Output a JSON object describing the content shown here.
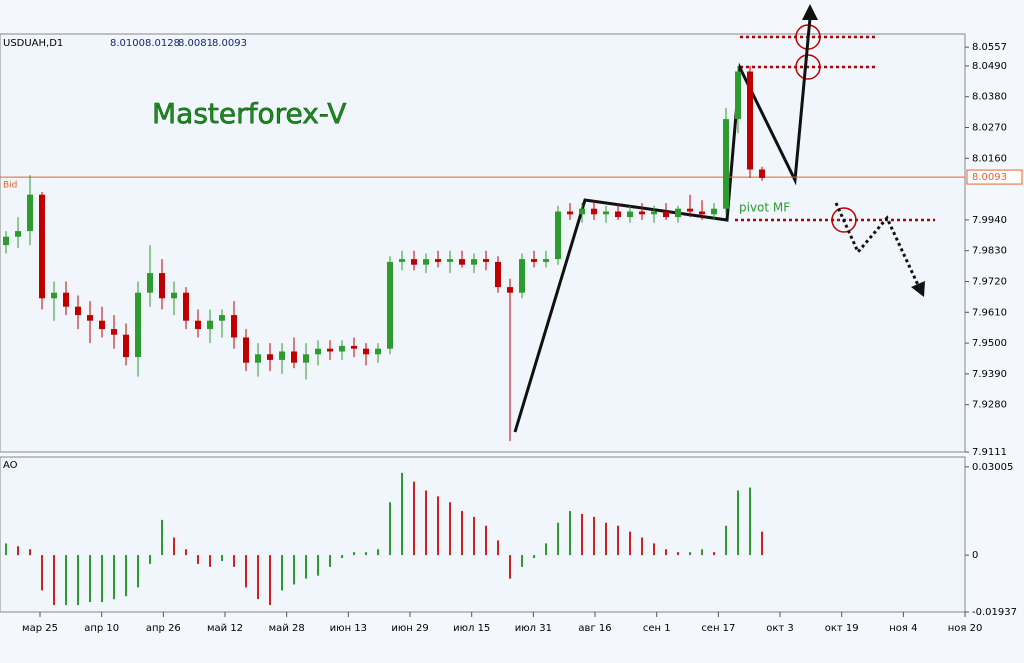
{
  "chart_data": {
    "type": "candlestick",
    "symbol": "USDUAH,D1",
    "quote": [
      "8.0100",
      "8.0128",
      "8.0081",
      "8.0093"
    ],
    "title": "Masterforex-V",
    "annotation": "pivot MF",
    "bull_color": "#2e9b2e",
    "bear_color": "#c00000",
    "open": [
      7.985,
      7.988,
      7.99,
      8.003,
      7.966,
      7.968,
      7.963,
      7.96,
      7.958,
      7.955,
      7.953,
      7.945,
      7.968,
      7.975,
      7.966,
      7.968,
      7.958,
      7.955,
      7.958,
      7.96,
      7.952,
      7.943,
      7.946,
      7.944,
      7.947,
      7.943,
      7.946,
      7.948,
      7.947,
      7.949,
      7.948,
      7.946,
      7.948,
      7.979,
      7.98,
      7.978,
      7.98,
      7.979,
      7.98,
      7.978,
      7.98,
      7.979,
      7.97,
      7.968,
      7.98,
      7.979,
      7.98,
      7.997,
      7.996,
      7.998,
      7.996,
      7.997,
      7.995,
      7.997,
      7.996,
      7.997,
      7.995,
      7.998,
      7.997,
      7.996,
      7.998,
      8.03,
      8.047,
      8.012
    ],
    "high": [
      7.99,
      7.995,
      8.01,
      8.004,
      7.972,
      7.972,
      7.967,
      7.965,
      7.963,
      7.96,
      7.957,
      7.972,
      7.985,
      7.98,
      7.972,
      7.97,
      7.962,
      7.962,
      7.962,
      7.965,
      7.955,
      7.95,
      7.95,
      7.95,
      7.952,
      7.95,
      7.951,
      7.951,
      7.951,
      7.952,
      7.95,
      7.95,
      7.981,
      7.983,
      7.983,
      7.982,
      7.983,
      7.983,
      7.983,
      7.982,
      7.983,
      7.981,
      7.973,
      7.982,
      7.983,
      7.983,
      7.999,
      8.0,
      8.0,
      8.001,
      7.999,
      8.0,
      7.999,
      8.0,
      7.999,
      8.0,
      7.999,
      8.003,
      8.001,
      8.0,
      8.034,
      8.049,
      8.049,
      8.013
    ],
    "low": [
      7.982,
      7.984,
      7.985,
      7.962,
      7.958,
      7.96,
      7.955,
      7.95,
      7.952,
      7.948,
      7.942,
      7.938,
      7.963,
      7.962,
      7.96,
      7.955,
      7.952,
      7.95,
      7.952,
      7.948,
      7.94,
      7.938,
      7.94,
      7.939,
      7.941,
      7.937,
      7.942,
      7.944,
      7.944,
      7.945,
      7.942,
      7.943,
      7.946,
      7.976,
      7.976,
      7.975,
      7.977,
      7.975,
      7.977,
      7.975,
      7.976,
      7.968,
      7.915,
      7.966,
      7.977,
      7.977,
      7.978,
      7.994,
      7.993,
      7.994,
      7.993,
      7.994,
      7.993,
      7.994,
      7.993,
      7.994,
      7.993,
      7.995,
      7.994,
      7.994,
      7.996,
      8.025,
      8.009,
      8.008
    ],
    "close": [
      7.988,
      7.99,
      8.003,
      7.966,
      7.968,
      7.963,
      7.96,
      7.958,
      7.955,
      7.953,
      7.945,
      7.968,
      7.975,
      7.966,
      7.968,
      7.958,
      7.955,
      7.958,
      7.96,
      7.952,
      7.943,
      7.946,
      7.944,
      7.947,
      7.943,
      7.946,
      7.948,
      7.947,
      7.949,
      7.948,
      7.946,
      7.948,
      7.979,
      7.98,
      7.978,
      7.98,
      7.979,
      7.98,
      7.978,
      7.98,
      7.979,
      7.97,
      7.968,
      7.98,
      7.979,
      7.98,
      7.997,
      7.996,
      7.998,
      7.996,
      7.997,
      7.995,
      7.997,
      7.996,
      7.997,
      7.995,
      7.998,
      7.997,
      7.996,
      7.998,
      8.03,
      8.047,
      8.012,
      8.009
    ],
    "ylim": [
      7.9111,
      8.0604
    ],
    "yticks": [
      8.0557,
      {
        "value": 8.049,
        "label": "8.0490"
      },
      {
        "value": 8.038,
        "label": "8.0380"
      },
      {
        "value": 8.027,
        "label": "8.0270"
      },
      {
        "value": 8.016,
        "label": "8.0160"
      },
      {
        "value": 7.994,
        "label": "7.9940"
      },
      {
        "value": 7.983,
        "label": "7.9830"
      },
      {
        "value": 7.972,
        "label": "7.9720"
      },
      {
        "value": 7.961,
        "label": "7.9610"
      },
      {
        "value": 7.95,
        "label": "7.9500"
      },
      {
        "value": 7.939,
        "label": "7.9390"
      },
      {
        "value": 7.928,
        "label": "7.9280"
      },
      7.9111
    ],
    "bid": {
      "label": "Bid",
      "value": 8.0093,
      "color": "#e8622c"
    },
    "x_labels": [
      "мар 25",
      "апр 10",
      "апр 26",
      "май 12",
      "май 28",
      "июн 13",
      "июн 29",
      "июл 15",
      "июл 31",
      "авг 16",
      "сен 1",
      "сен 17",
      "окт 3",
      "окт 19",
      "ноя 4",
      "ноя 20"
    ],
    "indicator": {
      "type": "bar",
      "name": "AO",
      "up_color": "#2e9b2e",
      "down_color": "#d02020",
      "values": [
        0.004,
        0.003,
        0.002,
        -0.012,
        -0.017,
        -0.017,
        -0.017,
        -0.016,
        -0.016,
        -0.015,
        -0.014,
        -0.011,
        -0.003,
        0.012,
        0.006,
        0.002,
        -0.003,
        -0.004,
        -0.002,
        -0.004,
        -0.011,
        -0.015,
        -0.017,
        -0.012,
        -0.01,
        -0.008,
        -0.007,
        -0.004,
        -0.001,
        0.001,
        0.001,
        0.002,
        0.018,
        0.028,
        0.025,
        0.022,
        0.02,
        0.018,
        0.015,
        0.013,
        0.01,
        0.005,
        -0.008,
        -0.004,
        -0.001,
        0.004,
        0.011,
        0.015,
        0.014,
        0.013,
        0.011,
        0.01,
        0.008,
        0.006,
        0.004,
        0.002,
        0.001,
        0.001,
        0.002,
        0.001,
        0.01,
        0.022,
        0.023,
        0.008
      ],
      "ylim": [
        -0.01937,
        0.0334
      ],
      "yticks": [
        0.03005,
        0,
        -0.01937
      ]
    }
  }
}
